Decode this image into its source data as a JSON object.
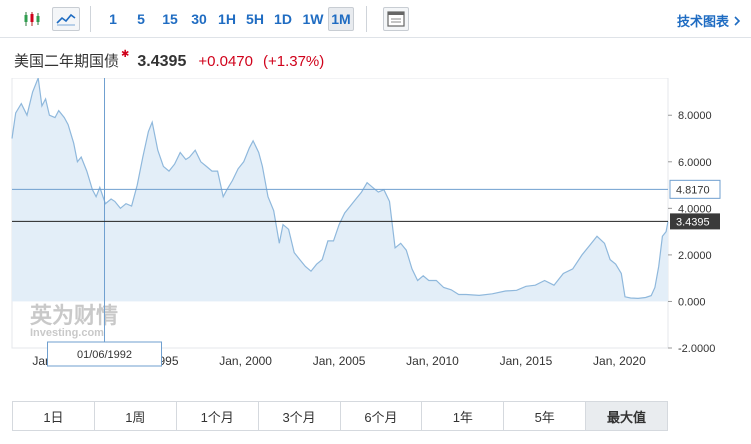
{
  "toolbar": {
    "candle_icon": "candlestick-icon",
    "area_icon": "area-chart-icon",
    "intervals": [
      "1",
      "5",
      "15",
      "30",
      "1H",
      "5H",
      "1D",
      "1W",
      "1M"
    ],
    "active_interval": "1M",
    "layout_icon": "window-icon",
    "tech_chart_label": "技术图表"
  },
  "quote": {
    "name": "美国二年期国债",
    "price": "3.4395",
    "change": "+0.0470",
    "change_pct": "(+1.37%)",
    "up_color": "#d0021b"
  },
  "chart_data": {
    "type": "area",
    "x_ticks": [
      "Jan, 1990",
      "Jan, 1995",
      "Jan, 2000",
      "Jan, 2005",
      "Jan, 2010",
      "Jan, 2015",
      "Jan, 2020"
    ],
    "x_tick_years": [
      1990,
      1995,
      2000,
      2005,
      2010,
      2015,
      2020
    ],
    "x_range": [
      1987.5,
      2022.6
    ],
    "y_ticks": [
      "8.0000",
      "6.0000",
      "4.0000",
      "2.0000",
      "0.000",
      "-2.0000"
    ],
    "y_tick_values": [
      8,
      6,
      4,
      2,
      0,
      -2
    ],
    "ylim": [
      -2,
      9.6
    ],
    "series": [
      {
        "color": "#8fb8dc",
        "fill": "#e3eef8",
        "x": [
          1987.5,
          1987.7,
          1988.0,
          1988.3,
          1988.6,
          1988.9,
          1989.1,
          1989.3,
          1989.5,
          1989.8,
          1990.0,
          1990.3,
          1990.5,
          1990.8,
          1991.0,
          1991.2,
          1991.5,
          1991.8,
          1992.0,
          1992.2,
          1992.5,
          1992.8,
          1993.0,
          1993.3,
          1993.6,
          1993.9,
          1994.2,
          1994.5,
          1994.8,
          1995.0,
          1995.3,
          1995.6,
          1995.9,
          1996.2,
          1996.5,
          1996.8,
          1997.0,
          1997.3,
          1997.6,
          1997.9,
          1998.2,
          1998.5,
          1998.8,
          1999.0,
          1999.3,
          1999.6,
          1999.9,
          2000.2,
          2000.4,
          2000.7,
          2000.9,
          2001.2,
          2001.5,
          2001.8,
          2002.0,
          2002.3,
          2002.6,
          2002.9,
          2003.2,
          2003.5,
          2003.8,
          2004.1,
          2004.4,
          2004.7,
          2005.0,
          2005.3,
          2005.6,
          2005.9,
          2006.2,
          2006.5,
          2006.8,
          2007.1,
          2007.4,
          2007.7,
          2008.0,
          2008.3,
          2008.6,
          2008.9,
          2009.2,
          2009.5,
          2009.8,
          2010.2,
          2010.6,
          2011.0,
          2011.4,
          2011.8,
          2012.5,
          2013.2,
          2013.9,
          2014.5,
          2015.0,
          2015.5,
          2016.0,
          2016.5,
          2017.0,
          2017.5,
          2018.0,
          2018.4,
          2018.8,
          2019.2,
          2019.5,
          2019.8,
          2020.1,
          2020.3,
          2020.6,
          2021.0,
          2021.4,
          2021.7,
          2021.9,
          2022.1,
          2022.3,
          2022.5,
          2022.6
        ],
        "y": [
          7.0,
          8.1,
          8.5,
          8.0,
          9.0,
          9.6,
          8.4,
          8.7,
          8.0,
          7.9,
          8.2,
          7.9,
          7.6,
          6.8,
          6.0,
          6.2,
          5.6,
          4.8,
          4.5,
          4.9,
          4.2,
          4.4,
          4.3,
          4.0,
          4.2,
          4.1,
          5.0,
          6.2,
          7.3,
          7.7,
          6.5,
          5.8,
          5.6,
          5.9,
          6.4,
          6.1,
          6.2,
          6.5,
          6.0,
          5.8,
          5.6,
          5.6,
          4.5,
          4.8,
          5.2,
          5.7,
          6.0,
          6.6,
          6.9,
          6.4,
          5.8,
          4.5,
          3.9,
          2.5,
          3.3,
          3.1,
          2.1,
          1.8,
          1.5,
          1.3,
          1.6,
          1.8,
          2.6,
          2.6,
          3.3,
          3.8,
          4.1,
          4.4,
          4.7,
          5.1,
          4.9,
          4.7,
          4.8,
          4.3,
          2.3,
          2.5,
          2.2,
          1.4,
          0.9,
          1.1,
          0.9,
          0.9,
          0.6,
          0.5,
          0.3,
          0.3,
          0.26,
          0.33,
          0.45,
          0.48,
          0.65,
          0.7,
          0.9,
          0.7,
          1.2,
          1.4,
          2.0,
          2.4,
          2.8,
          2.5,
          1.8,
          1.6,
          1.2,
          0.2,
          0.15,
          0.13,
          0.17,
          0.25,
          0.6,
          1.5,
          2.8,
          3.0,
          3.4395
        ]
      }
    ],
    "current_value": "3.4395",
    "crosshair": {
      "date_label": "01/06/1992",
      "x": 1992.45,
      "value_label": "4.8170",
      "y": 4.817
    },
    "watermark": "英为财情 Investing.com",
    "grid": false
  },
  "ranges": [
    "1日",
    "1周",
    "1个月",
    "3个月",
    "6个月",
    "1年",
    "5年",
    "最大值"
  ],
  "active_range": "最大值"
}
